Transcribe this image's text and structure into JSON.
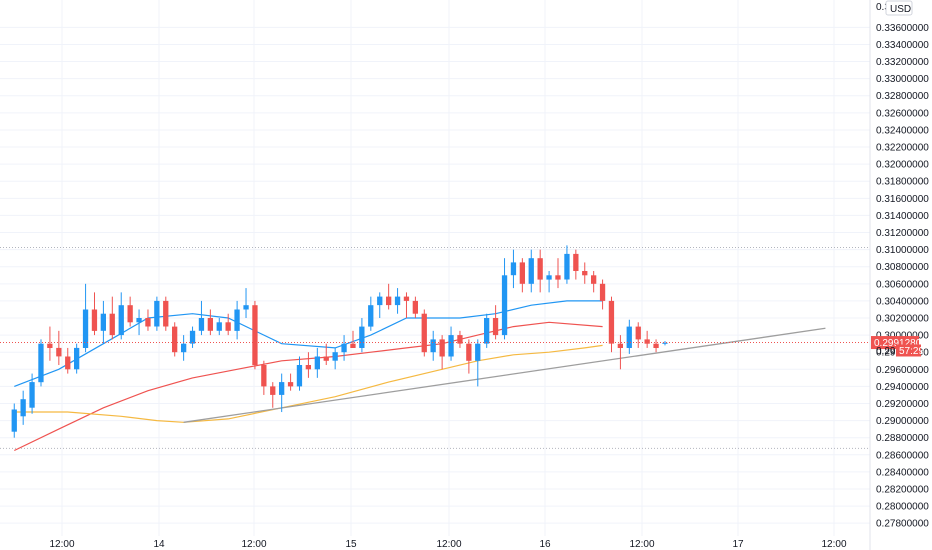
{
  "chart_data": {
    "type": "candlestick",
    "currency_label": "USD",
    "y_axis": {
      "ticks": [
        "0.27800000",
        "0.28000000",
        "0.28200000",
        "0.28400000",
        "0.28600000",
        "0.28800000",
        "0.29000000",
        "0.29200000",
        "0.29400000",
        "0.29600000",
        "0.29800000",
        "0.30000000",
        "0.30200000",
        "0.30400000",
        "0.30600000",
        "0.30800000",
        "0.31000000",
        "0.31200000",
        "0.31400000",
        "0.31600000",
        "0.31800000",
        "0.32000000",
        "0.32200000",
        "0.32400000",
        "0.32600000",
        "0.32800000",
        "0.33000000",
        "0.33200000",
        "0.33400000",
        "0.33600000"
      ],
      "top_partial_tick": "0.3 000",
      "ylim": [
        0.2765,
        0.3392
      ]
    },
    "x_axis": {
      "labels": [
        "12:00",
        "14",
        "12:00",
        "15",
        "12:00",
        "16",
        "12:00",
        "17",
        "12:00"
      ]
    },
    "price_tag": {
      "value": "0.29912807",
      "price": 0.29913,
      "color": "#ef5350"
    },
    "timer_tag": {
      "value": "0.298",
      "countdown": "57:29",
      "price": 0.2982
    },
    "dotted_levels": [
      0.31025,
      0.28675
    ],
    "candles": [
      {
        "o": 0.2887,
        "h": 0.292,
        "l": 0.288,
        "c": 0.2913
      },
      {
        "o": 0.2905,
        "h": 0.2935,
        "l": 0.2895,
        "c": 0.2925
      },
      {
        "o": 0.2915,
        "h": 0.2955,
        "l": 0.2908,
        "c": 0.2945
      },
      {
        "o": 0.2945,
        "h": 0.2995,
        "l": 0.294,
        "c": 0.299
      },
      {
        "o": 0.299,
        "h": 0.301,
        "l": 0.297,
        "c": 0.2985
      },
      {
        "o": 0.2985,
        "h": 0.3005,
        "l": 0.2965,
        "c": 0.2975
      },
      {
        "o": 0.2975,
        "h": 0.2985,
        "l": 0.2955,
        "c": 0.296
      },
      {
        "o": 0.296,
        "h": 0.299,
        "l": 0.2955,
        "c": 0.2985
      },
      {
        "o": 0.2985,
        "h": 0.306,
        "l": 0.298,
        "c": 0.303
      },
      {
        "o": 0.303,
        "h": 0.305,
        "l": 0.3,
        "c": 0.3005
      },
      {
        "o": 0.3005,
        "h": 0.304,
        "l": 0.299,
        "c": 0.3025
      },
      {
        "o": 0.3025,
        "h": 0.3045,
        "l": 0.2995,
        "c": 0.3
      },
      {
        "o": 0.3,
        "h": 0.305,
        "l": 0.2995,
        "c": 0.3035
      },
      {
        "o": 0.3035,
        "h": 0.3045,
        "l": 0.301,
        "c": 0.3015
      },
      {
        "o": 0.3015,
        "h": 0.303,
        "l": 0.3,
        "c": 0.302
      },
      {
        "o": 0.302,
        "h": 0.303,
        "l": 0.3005,
        "c": 0.301
      },
      {
        "o": 0.301,
        "h": 0.3045,
        "l": 0.3005,
        "c": 0.304
      },
      {
        "o": 0.304,
        "h": 0.3045,
        "l": 0.3005,
        "c": 0.301
      },
      {
        "o": 0.301,
        "h": 0.3015,
        "l": 0.2975,
        "c": 0.298
      },
      {
        "o": 0.298,
        "h": 0.3,
        "l": 0.297,
        "c": 0.299
      },
      {
        "o": 0.299,
        "h": 0.301,
        "l": 0.2985,
        "c": 0.3005
      },
      {
        "o": 0.3005,
        "h": 0.304,
        "l": 0.3,
        "c": 0.302
      },
      {
        "o": 0.302,
        "h": 0.303,
        "l": 0.3,
        "c": 0.3005
      },
      {
        "o": 0.3005,
        "h": 0.302,
        "l": 0.3,
        "c": 0.3015
      },
      {
        "o": 0.3015,
        "h": 0.3025,
        "l": 0.3,
        "c": 0.3005
      },
      {
        "o": 0.3005,
        "h": 0.304,
        "l": 0.2995,
        "c": 0.303
      },
      {
        "o": 0.303,
        "h": 0.3055,
        "l": 0.302,
        "c": 0.3035
      },
      {
        "o": 0.3035,
        "h": 0.304,
        "l": 0.296,
        "c": 0.2965
      },
      {
        "o": 0.2965,
        "h": 0.297,
        "l": 0.293,
        "c": 0.294
      },
      {
        "o": 0.294,
        "h": 0.2945,
        "l": 0.2915,
        "c": 0.293
      },
      {
        "o": 0.293,
        "h": 0.2955,
        "l": 0.291,
        "c": 0.2945
      },
      {
        "o": 0.2945,
        "h": 0.2955,
        "l": 0.2935,
        "c": 0.294
      },
      {
        "o": 0.294,
        "h": 0.2975,
        "l": 0.2935,
        "c": 0.2965
      },
      {
        "o": 0.2965,
        "h": 0.298,
        "l": 0.295,
        "c": 0.296
      },
      {
        "o": 0.296,
        "h": 0.2985,
        "l": 0.295,
        "c": 0.2975
      },
      {
        "o": 0.2975,
        "h": 0.299,
        "l": 0.2965,
        "c": 0.297
      },
      {
        "o": 0.297,
        "h": 0.2985,
        "l": 0.296,
        "c": 0.298
      },
      {
        "o": 0.298,
        "h": 0.3,
        "l": 0.297,
        "c": 0.299
      },
      {
        "o": 0.299,
        "h": 0.3005,
        "l": 0.2985,
        "c": 0.2985
      },
      {
        "o": 0.2985,
        "h": 0.302,
        "l": 0.298,
        "c": 0.301
      },
      {
        "o": 0.301,
        "h": 0.3045,
        "l": 0.3005,
        "c": 0.3035
      },
      {
        "o": 0.3035,
        "h": 0.305,
        "l": 0.302,
        "c": 0.3045
      },
      {
        "o": 0.3045,
        "h": 0.306,
        "l": 0.303,
        "c": 0.3035
      },
      {
        "o": 0.3035,
        "h": 0.3055,
        "l": 0.3025,
        "c": 0.3045
      },
      {
        "o": 0.3045,
        "h": 0.305,
        "l": 0.302,
        "c": 0.304
      },
      {
        "o": 0.304,
        "h": 0.3045,
        "l": 0.302,
        "c": 0.3025
      },
      {
        "o": 0.3025,
        "h": 0.303,
        "l": 0.2975,
        "c": 0.298
      },
      {
        "o": 0.298,
        "h": 0.3005,
        "l": 0.297,
        "c": 0.2995
      },
      {
        "o": 0.2995,
        "h": 0.3,
        "l": 0.296,
        "c": 0.2975
      },
      {
        "o": 0.2975,
        "h": 0.301,
        "l": 0.297,
        "c": 0.3
      },
      {
        "o": 0.3,
        "h": 0.3005,
        "l": 0.2985,
        "c": 0.299
      },
      {
        "o": 0.299,
        "h": 0.2995,
        "l": 0.2955,
        "c": 0.297
      },
      {
        "o": 0.297,
        "h": 0.2995,
        "l": 0.294,
        "c": 0.299
      },
      {
        "o": 0.299,
        "h": 0.3025,
        "l": 0.2985,
        "c": 0.302
      },
      {
        "o": 0.302,
        "h": 0.3035,
        "l": 0.2995,
        "c": 0.3
      },
      {
        "o": 0.3,
        "h": 0.309,
        "l": 0.2995,
        "c": 0.307
      },
      {
        "o": 0.307,
        "h": 0.31,
        "l": 0.3055,
        "c": 0.3085
      },
      {
        "o": 0.3085,
        "h": 0.309,
        "l": 0.305,
        "c": 0.306
      },
      {
        "o": 0.306,
        "h": 0.31,
        "l": 0.305,
        "c": 0.309
      },
      {
        "o": 0.309,
        "h": 0.31,
        "l": 0.305,
        "c": 0.3065
      },
      {
        "o": 0.3065,
        "h": 0.3075,
        "l": 0.305,
        "c": 0.307
      },
      {
        "o": 0.307,
        "h": 0.309,
        "l": 0.3055,
        "c": 0.3065
      },
      {
        "o": 0.3065,
        "h": 0.3105,
        "l": 0.306,
        "c": 0.3095
      },
      {
        "o": 0.3095,
        "h": 0.31,
        "l": 0.3065,
        "c": 0.3075
      },
      {
        "o": 0.3075,
        "h": 0.3085,
        "l": 0.306,
        "c": 0.307
      },
      {
        "o": 0.307,
        "h": 0.3075,
        "l": 0.305,
        "c": 0.306
      },
      {
        "o": 0.306,
        "h": 0.3065,
        "l": 0.303,
        "c": 0.304
      },
      {
        "o": 0.304,
        "h": 0.3045,
        "l": 0.298,
        "c": 0.299
      },
      {
        "o": 0.299,
        "h": 0.3,
        "l": 0.296,
        "c": 0.2985
      },
      {
        "o": 0.2985,
        "h": 0.3018,
        "l": 0.2978,
        "c": 0.301
      },
      {
        "o": 0.301,
        "h": 0.3015,
        "l": 0.2985,
        "c": 0.2995
      },
      {
        "o": 0.2995,
        "h": 0.3005,
        "l": 0.2985,
        "c": 0.299
      },
      {
        "o": 0.299,
        "h": 0.2995,
        "l": 0.298,
        "c": 0.2985
      },
      {
        "o": 0.299,
        "h": 0.2993,
        "l": 0.2988,
        "c": 0.2991
      }
    ],
    "ma_series": [
      {
        "color": "#2196f3",
        "values": [
          [
            0,
            0.294
          ],
          [
            5,
            0.296
          ],
          [
            10,
            0.299
          ],
          [
            15,
            0.302
          ],
          [
            20,
            0.3025
          ],
          [
            24,
            0.302
          ],
          [
            30,
            0.299
          ],
          [
            36,
            0.2985
          ],
          [
            40,
            0.3
          ],
          [
            44,
            0.302
          ],
          [
            50,
            0.302
          ],
          [
            54,
            0.3025
          ],
          [
            58,
            0.3035
          ],
          [
            62,
            0.304
          ],
          [
            66,
            0.304
          ]
        ]
      },
      {
        "color": "#ef5350",
        "values": [
          [
            0,
            0.2865
          ],
          [
            5,
            0.289
          ],
          [
            10,
            0.2915
          ],
          [
            15,
            0.2935
          ],
          [
            20,
            0.295
          ],
          [
            25,
            0.296
          ],
          [
            30,
            0.297
          ],
          [
            36,
            0.2975
          ],
          [
            40,
            0.298
          ],
          [
            44,
            0.2985
          ],
          [
            48,
            0.299
          ],
          [
            52,
            0.3
          ],
          [
            56,
            0.301
          ],
          [
            60,
            0.3015
          ],
          [
            66,
            0.301
          ]
        ]
      },
      {
        "color": "#f5b942",
        "values": [
          [
            0,
            0.291
          ],
          [
            6,
            0.291
          ],
          [
            12,
            0.2905
          ],
          [
            16,
            0.29
          ],
          [
            19,
            0.2898
          ],
          [
            24,
            0.2902
          ],
          [
            30,
            0.2915
          ],
          [
            36,
            0.2928
          ],
          [
            42,
            0.2945
          ],
          [
            48,
            0.296
          ],
          [
            52,
            0.297
          ],
          [
            56,
            0.2977
          ],
          [
            60,
            0.298
          ],
          [
            64,
            0.2985
          ],
          [
            66,
            0.2988
          ]
        ]
      }
    ],
    "trendline": {
      "color": "#9e9e9e",
      "from": [
        19,
        0.2898
      ],
      "to": [
        91,
        0.3008
      ]
    },
    "layout": {
      "x_start": -1.6,
      "x_end": 96
    }
  }
}
